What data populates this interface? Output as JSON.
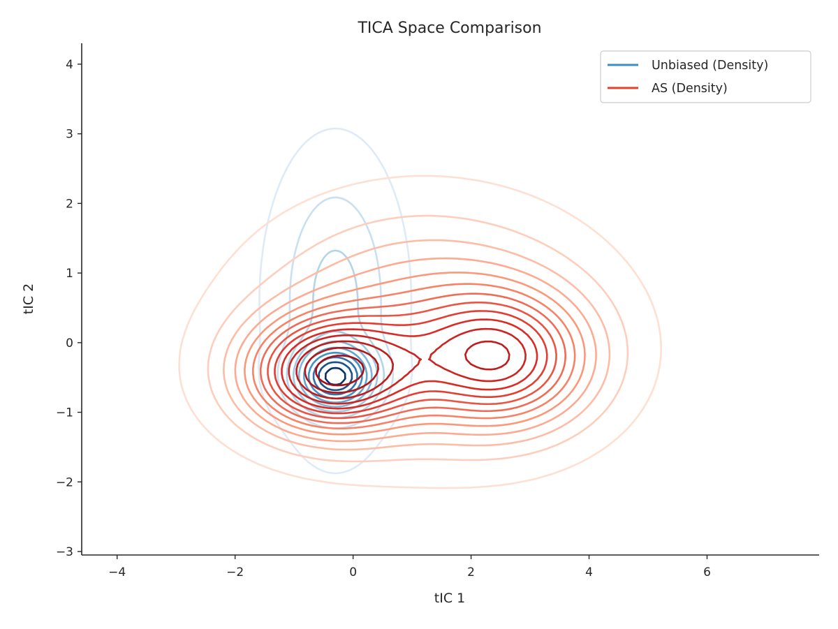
{
  "chart_data": {
    "type": "contour",
    "title": "TICA Space Comparison",
    "xlabel": "tIC 1",
    "ylabel": "tIC 2",
    "xlim": [
      -4.6,
      7.9
    ],
    "ylim": [
      -3.05,
      4.3
    ],
    "xticks": [
      -4,
      -2,
      0,
      2,
      4,
      6
    ],
    "yticks": [
      -3,
      -2,
      -1,
      0,
      1,
      2,
      3,
      4
    ],
    "xtick_labels": [
      "−4",
      "−2",
      "0",
      "2",
      "4",
      "6"
    ],
    "ytick_labels": [
      "−3",
      "−2",
      "−1",
      "0",
      "1",
      "2",
      "3",
      "4"
    ],
    "grid": false,
    "legend_position": "top-right",
    "series": [
      {
        "name": "Unbiased (Density)",
        "kind": "kde-contour",
        "color": "#3a8cc4",
        "cmap": "Blues",
        "modes": [
          {
            "center": [
              -0.3,
              -0.5
            ],
            "sigma": [
              0.45,
              0.3
            ],
            "weight": 1.0
          },
          {
            "center": [
              -0.3,
              0.6
            ],
            "sigma": [
              0.65,
              1.25
            ],
            "weight": 0.35
          }
        ],
        "extent": {
          "x": [
            -1.3,
            1.5
          ],
          "y": [
            -2.3,
            3.0
          ]
        },
        "levels": 10
      },
      {
        "name": "AS (Density)",
        "kind": "kde-contour",
        "color": "#e0412d",
        "cmap": "Reds",
        "modes": [
          {
            "center": [
              -0.4,
              -0.45
            ],
            "sigma": [
              0.95,
              0.55
            ],
            "weight": 1.0
          },
          {
            "center": [
              2.55,
              -0.25
            ],
            "sigma": [
              1.0,
              0.65
            ],
            "weight": 0.72
          },
          {
            "center": [
              1.2,
              0.2
            ],
            "sigma": [
              1.75,
              1.05
            ],
            "weight": 0.45
          }
        ],
        "extent": {
          "x": [
            -3.3,
            5.9
          ],
          "y": [
            -2.3,
            2.8
          ]
        },
        "levels": 14
      }
    ]
  }
}
